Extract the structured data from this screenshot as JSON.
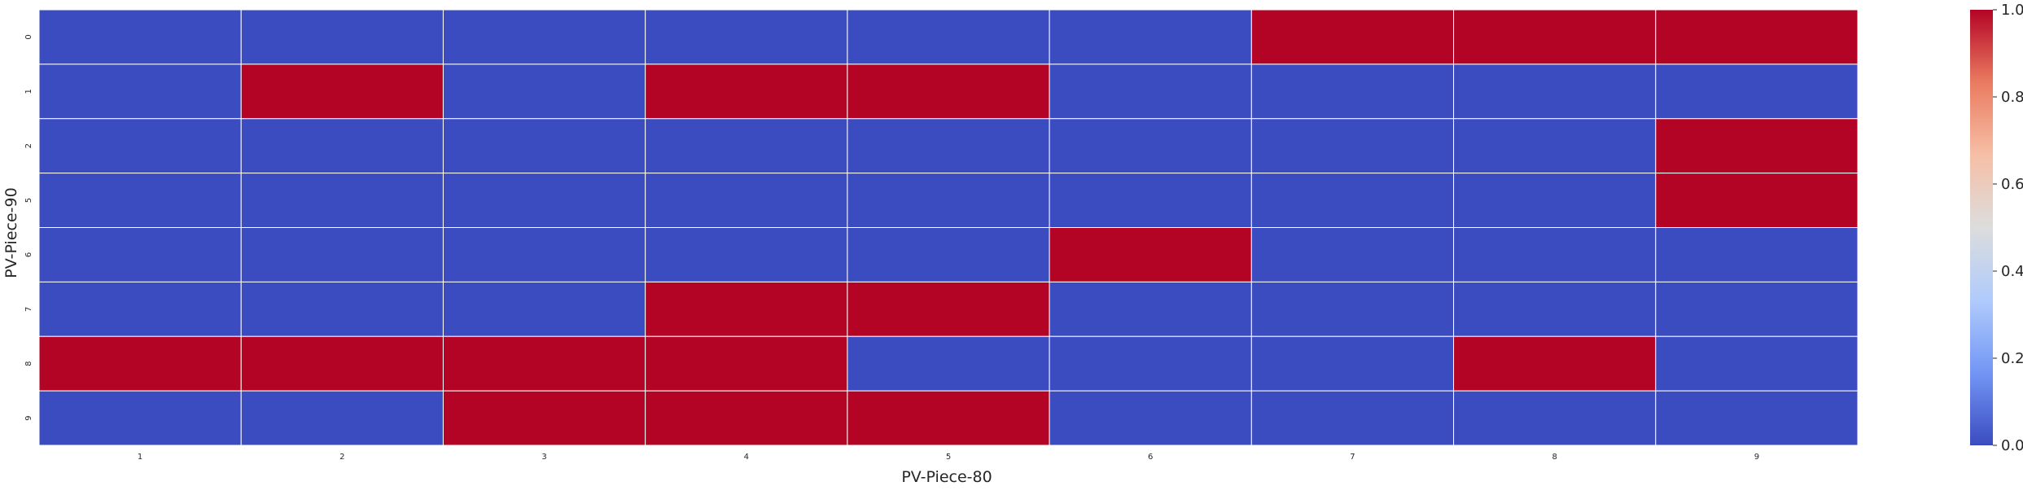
{
  "chart_data": {
    "type": "heatmap",
    "title": "",
    "xlabel": "PV-Piece-80",
    "ylabel": "PV-Piece-90",
    "x_categories": [
      "1",
      "2",
      "3",
      "4",
      "5",
      "6",
      "7",
      "8",
      "9"
    ],
    "y_categories": [
      "0",
      "1",
      "2",
      "5",
      "6",
      "7",
      "8",
      "9"
    ],
    "values": [
      [
        0,
        0,
        0,
        0,
        0,
        0,
        1,
        1,
        1
      ],
      [
        0,
        1,
        0,
        1,
        1,
        0,
        0,
        0,
        0
      ],
      [
        0,
        0,
        0,
        0,
        0,
        0,
        0,
        0,
        1
      ],
      [
        0,
        0,
        0,
        0,
        0,
        0,
        0,
        0,
        1
      ],
      [
        0,
        0,
        0,
        0,
        0,
        1,
        0,
        0,
        0
      ],
      [
        0,
        0,
        0,
        1,
        1,
        0,
        0,
        0,
        0
      ],
      [
        1,
        1,
        1,
        1,
        0,
        0,
        0,
        1,
        0
      ],
      [
        0,
        0,
        1,
        1,
        1,
        0,
        0,
        0,
        0
      ]
    ],
    "colormap": "coolwarm",
    "colormap_stops": [
      "#3b4cc0",
      "#7396f5",
      "#b0cbfc",
      "#dcdddd",
      "#f6bfa6",
      "#ea7b60",
      "#b40426"
    ],
    "cell_border_color": "#ffffff",
    "vmin": 0.0,
    "vmax": 1.0,
    "colorbar_ticks": [
      "0.0",
      "0.2",
      "0.4",
      "0.6",
      "0.8",
      "1.0"
    ],
    "grid": false,
    "legend": "colorbar-right"
  }
}
